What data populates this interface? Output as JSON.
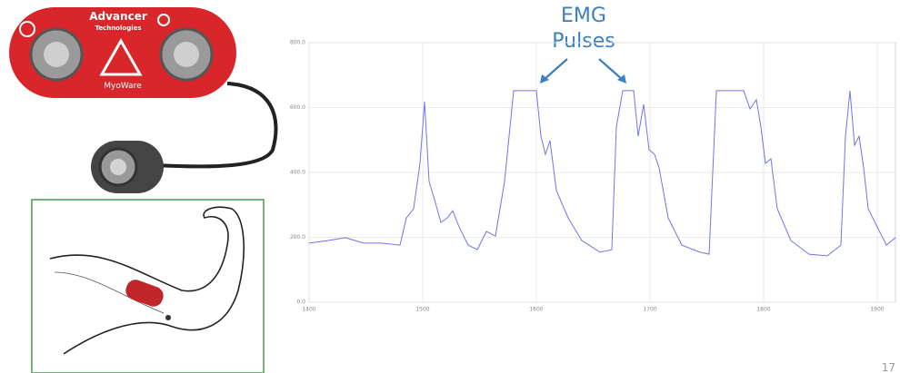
{
  "chart_data": {
    "type": "line",
    "annotation": [
      "EMG",
      "Pulses"
    ],
    "board_labels": [
      "Advancer",
      "Technologies",
      "MyoWare"
    ],
    "page_number": "17",
    "x": [
      1400,
      1416,
      1432,
      1448,
      1464,
      1480,
      1485.6,
      1492,
      1497.6,
      1501.6,
      1505.6,
      1510.4,
      1516,
      1521.6,
      1526.4,
      1532,
      1540,
      1548,
      1556,
      1564,
      1572,
      1580,
      1600,
      1604,
      1608,
      1612,
      1617.6,
      1628,
      1640,
      1656,
      1666.4,
      1670.4,
      1676,
      1685.6,
      1689.6,
      1694.4,
      1699.2,
      1704,
      1708,
      1716,
      1728,
      1744,
      1752,
      1758.4,
      1782.4,
      1788,
      1793.6,
      1797.6,
      1801.6,
      1806.4,
      1812,
      1824,
      1840,
      1856,
      1868,
      1872,
      1876,
      1880,
      1884,
      1888,
      1892,
      1900,
      1908,
      1916
    ],
    "series": [
      {
        "color": "#6f74ee",
        "values": [
          182,
          190,
          199,
          182,
          182,
          176,
          260,
          288,
          428,
          618,
          372,
          316,
          246,
          260,
          282,
          232,
          176,
          162,
          218,
          204,
          372,
          652,
          652,
          512,
          456,
          498,
          344,
          260,
          190,
          154,
          162,
          540,
          652,
          652,
          512,
          610,
          470,
          456,
          414,
          260,
          176,
          154,
          148,
          652,
          652,
          596,
          624,
          540,
          428,
          442,
          288,
          190,
          148,
          143,
          176,
          512,
          652,
          484,
          512,
          414,
          288,
          232,
          176,
          199
        ]
      }
    ],
    "xlim": [
      1400,
      1916
    ],
    "ylim": [
      0,
      800
    ],
    "xticks": [
      1400,
      1500,
      1600,
      1700,
      1800,
      1900
    ],
    "yticks": [
      {
        "value": 0,
        "label": "0.0"
      },
      {
        "value": 200,
        "label": "200.0"
      },
      {
        "value": 400,
        "label": "400.0"
      },
      {
        "value": 600,
        "label": "600.0"
      },
      {
        "value": 800,
        "label": "800.0"
      }
    ],
    "grid": true
  }
}
